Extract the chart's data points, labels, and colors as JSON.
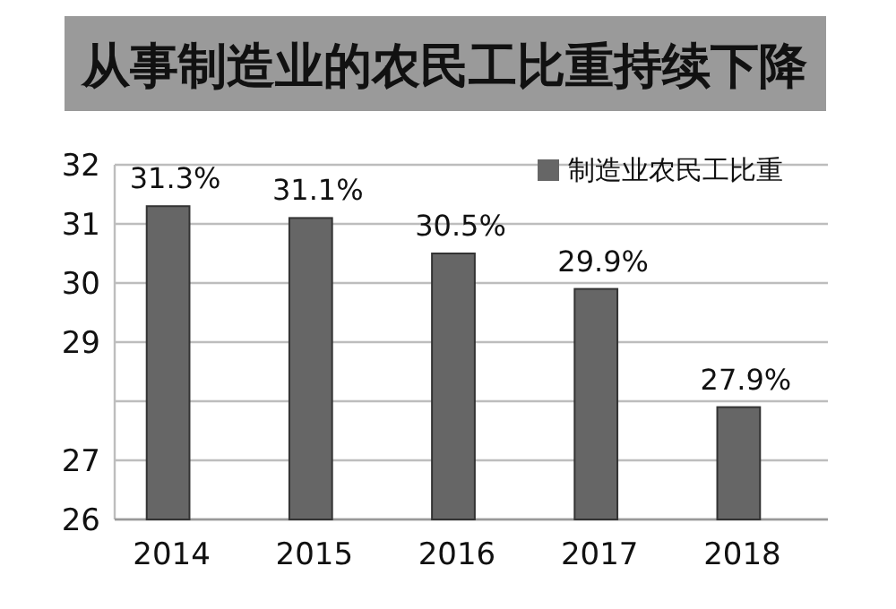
{
  "chart_data": {
    "type": "bar",
    "title": "从事制造业的农民工比重持续下降",
    "categories": [
      "2014",
      "2015",
      "2016",
      "2017",
      "2018"
    ],
    "series": [
      {
        "name": "制造业农民工比重",
        "color": "#666666",
        "values": [
          31.3,
          31.1,
          30.5,
          29.9,
          27.9
        ]
      }
    ],
    "value_labels": [
      "31.3%",
      "31.1%",
      "30.5%",
      "29.9%",
      "27.9%"
    ],
    "ylim": [
      26,
      32
    ],
    "yticks": [
      26,
      {
        "value": 27,
        "label": "27"
      },
      {
        "value": 28,
        "label": null
      },
      29,
      30,
      31,
      32
    ],
    "grid": "y",
    "legend": "top right"
  }
}
